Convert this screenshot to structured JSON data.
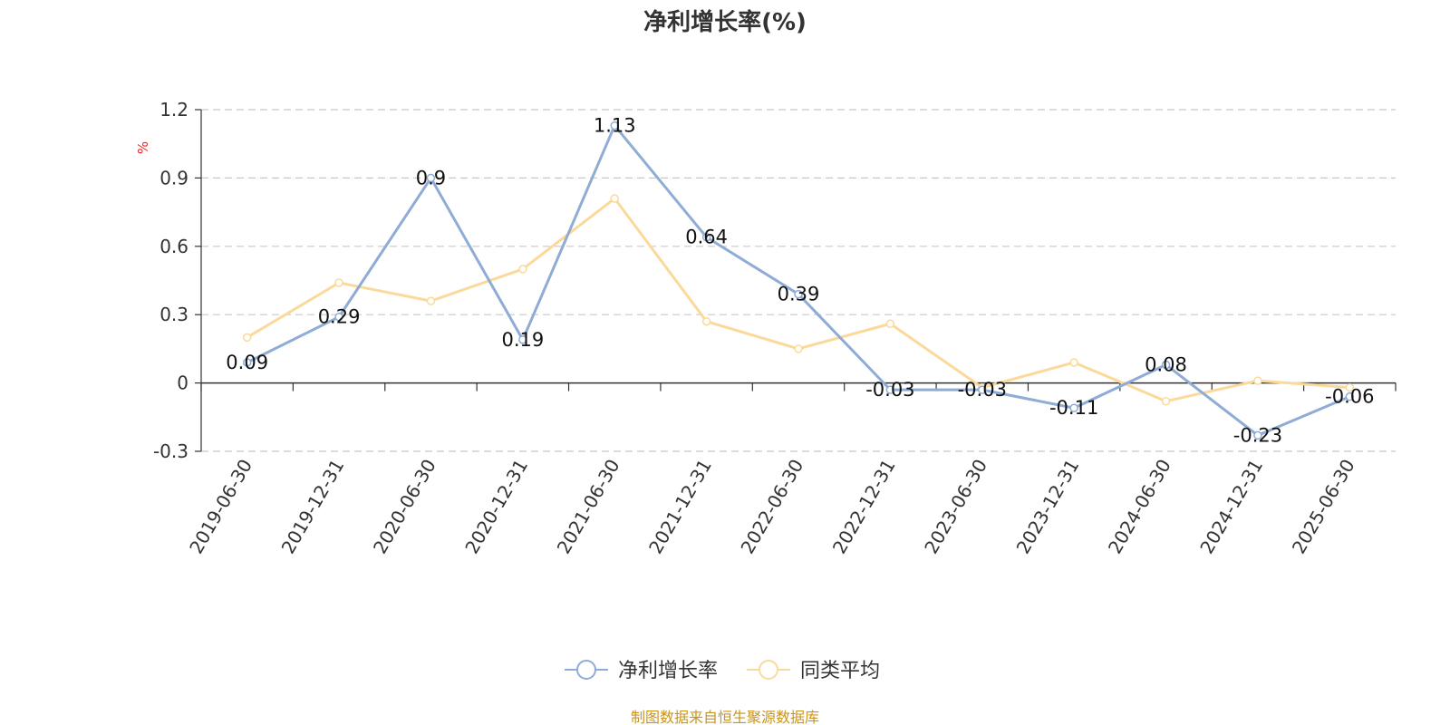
{
  "colors": {
    "series1": "#8eacd6",
    "series2": "#fbd99a",
    "ylabel": "#ee2222",
    "source": "#c8941e",
    "grid": "#c8c8c8",
    "axis": "#333333"
  },
  "chart_data": {
    "type": "line",
    "title": "净利增长率(%)",
    "ylabel": "%",
    "xlabel": "",
    "ylim": [
      -0.3,
      1.2
    ],
    "yticks": [
      "-0.3",
      "0",
      "0.3",
      "0.6",
      "0.9",
      "1.2"
    ],
    "grid": true,
    "legend_position": "bottom-center",
    "categories": [
      "2019-06-30",
      "2019-12-31",
      "2020-06-30",
      "2020-12-31",
      "2021-06-30",
      "2021-12-31",
      "2022-06-30",
      "2022-12-31",
      "2023-06-30",
      "2023-12-31",
      "2024-06-30",
      "2024-12-31",
      "2025-06-30"
    ],
    "series": [
      {
        "name": "净利增长率",
        "values": [
          0.09,
          0.29,
          0.9,
          0.19,
          1.13,
          0.64,
          0.39,
          -0.03,
          -0.03,
          -0.11,
          0.08,
          -0.23,
          -0.06
        ],
        "labels": [
          "0.09",
          "0.29",
          "0.9",
          "0.19",
          "1.13",
          "0.64",
          "0.39",
          "-0.03",
          "-0.03",
          "-0.11",
          "0.08",
          "-0.23",
          "-0.06"
        ]
      },
      {
        "name": "同类平均",
        "values": [
          0.2,
          0.44,
          0.36,
          0.5,
          0.81,
          0.27,
          0.15,
          0.26,
          -0.02,
          0.09,
          -0.08,
          0.01,
          -0.02
        ]
      }
    ]
  },
  "source_text": "制图数据来自恒生聚源数据库"
}
